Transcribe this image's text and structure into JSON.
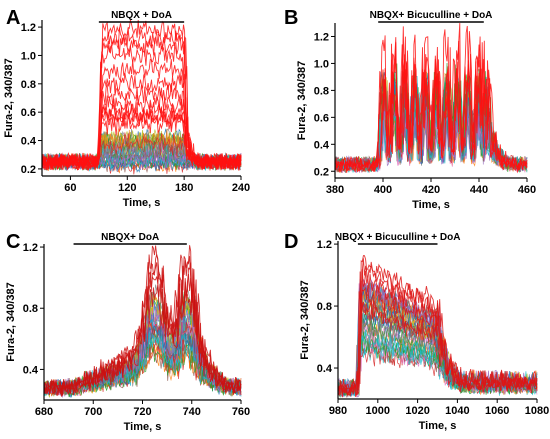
{
  "chart_data": [
    {
      "type": "line",
      "panel_letter": "A",
      "stimulus_label": "NBQX + DoA",
      "stimulus_window": [
        90,
        180
      ],
      "xlabel": "Time,  s",
      "ylabel": "Fura-2, 340/387",
      "xlim": [
        30,
        240
      ],
      "ylim": [
        0.15,
        1.25
      ],
      "xticks": [
        60,
        120,
        180,
        240
      ],
      "yticks": [
        0.2,
        0.4,
        0.6,
        0.8,
        1.0,
        1.2
      ],
      "xtick_labels": [
        "60",
        "120",
        "180",
        "240"
      ],
      "ytick_labels": [
        "0.2",
        "0.4",
        "0.6",
        "0.8",
        "1.0",
        "1.2"
      ],
      "pattern": "plateau",
      "baseline": 0.25,
      "peak_range": [
        0.22,
        0.42
      ],
      "highlight_color": "#ff1111",
      "highlight_peaks": [
        0.52,
        0.56,
        0.58,
        0.6,
        0.66,
        0.72,
        0.8,
        0.9,
        1.0,
        1.07,
        1.12,
        1.18
      ],
      "series_colors": [
        "#1f77b4",
        "#2ca02c",
        "#17becf",
        "#9467bd",
        "#bcbd22",
        "#ff7f0e",
        "#8c564b",
        "#e377c2",
        "#7f7f7f",
        "#d62728"
      ]
    },
    {
      "type": "line",
      "panel_letter": "B",
      "stimulus_label": "NBQX+ Bicuculline + DoA",
      "stimulus_window": [
        398,
        442
      ],
      "xlabel": "Time,  s",
      "ylabel": "Fura-2, 340/387",
      "xlim": [
        380,
        460
      ],
      "ylim": [
        0.15,
        1.3
      ],
      "xticks": [
        380,
        400,
        420,
        440,
        460
      ],
      "yticks": [
        0.2,
        0.4,
        0.6,
        0.8,
        1.0,
        1.2
      ],
      "xtick_labels": [
        "380",
        "400",
        "420",
        "440",
        "460"
      ],
      "ytick_labels": [
        "0.2",
        "0.4",
        "0.6",
        "0.8",
        "1.0",
        "1.2"
      ],
      "pattern": "oscillating",
      "baseline": 0.25,
      "peak_range": [
        0.55,
        0.95
      ],
      "highlight_color": "#ff1111",
      "highlight_peaks": [
        0.9,
        1.0,
        1.1,
        1.25
      ],
      "series_colors": [
        "#1f77b4",
        "#2ca02c",
        "#17becf",
        "#9467bd",
        "#bcbd22",
        "#ff7f0e",
        "#8c564b",
        "#e377c2",
        "#7f7f7f",
        "#d62728"
      ]
    },
    {
      "type": "line",
      "panel_letter": "C",
      "stimulus_label": "NBQX+ DoA",
      "stimulus_window": [
        692,
        738
      ],
      "xlabel": "Time,  s",
      "ylabel": "Fura-2,  340/387",
      "xlim": [
        680,
        760
      ],
      "ylim": [
        0.2,
        1.22
      ],
      "xticks": [
        680,
        700,
        720,
        740,
        760
      ],
      "yticks": [
        0.4,
        0.8,
        1.2
      ],
      "xtick_labels": [
        "680",
        "700",
        "720",
        "740",
        "760"
      ],
      "ytick_labels": [
        "0.4",
        "0.8",
        "1.2"
      ],
      "pattern": "double-bump",
      "baseline": 0.28,
      "peak_range": [
        0.5,
        0.9
      ],
      "highlight_color": "#cc1010",
      "highlight_peaks": [
        0.9,
        1.0,
        1.05,
        1.1,
        1.18
      ],
      "series_colors": [
        "#1f77b4",
        "#2ca02c",
        "#17becf",
        "#9467bd",
        "#bcbd22",
        "#ff7f0e",
        "#8c564b",
        "#e377c2",
        "#7f7f7f",
        "#d62728"
      ]
    },
    {
      "type": "line",
      "panel_letter": "D",
      "stimulus_label": "NBQX + Bicuculline + DoA",
      "stimulus_window": [
        990,
        1030
      ],
      "xlabel": "Time,  s",
      "ylabel": "Fura-2,  340/387",
      "xlim": [
        980,
        1080
      ],
      "ylim": [
        0.2,
        1.22
      ],
      "xticks": [
        980,
        1000,
        1020,
        1040,
        1060,
        1080
      ],
      "yticks": [
        0.4,
        0.8,
        1.2
      ],
      "xtick_labels": [
        "980",
        "1000",
        "1020",
        "1040",
        "1060",
        "1080"
      ],
      "ytick_labels": [
        "0.4",
        "0.8",
        "1.2"
      ],
      "pattern": "decay",
      "baseline": 0.27,
      "peak_range": [
        0.5,
        0.95
      ],
      "highlight_color": "#dd1515",
      "highlight_peaks": [
        0.8,
        0.9,
        1.0,
        1.05,
        1.1
      ],
      "series_colors": [
        "#1f77b4",
        "#2ca02c",
        "#17becf",
        "#9467bd",
        "#bcbd22",
        "#ff7f0e",
        "#8c564b",
        "#e377c2",
        "#7f7f7f",
        "#d62728"
      ]
    }
  ]
}
